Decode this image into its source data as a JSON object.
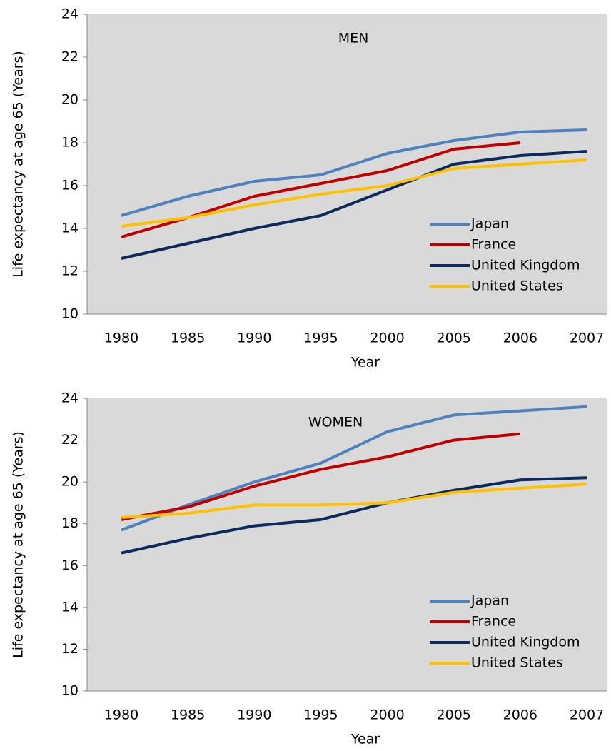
{
  "chart_data": [
    {
      "type": "line",
      "title": "MEN",
      "x_label": "Year",
      "y_label": "Life expectancy at age 65 (Years)",
      "categories": [
        "1980",
        "1985",
        "1990",
        "1995",
        "2000",
        "2005",
        "2006",
        "2007"
      ],
      "series": [
        {
          "name": "Japan",
          "color": "#4f81bd",
          "values": [
            14.6,
            15.5,
            16.2,
            16.5,
            17.5,
            18.1,
            18.5,
            18.6
          ]
        },
        {
          "name": "France",
          "color": "#c00000",
          "values": [
            13.6,
            14.5,
            15.5,
            16.1,
            16.7,
            17.7,
            18.0,
            null
          ]
        },
        {
          "name": "United Kingdom",
          "color": "#0d2a5c",
          "values": [
            12.6,
            13.3,
            14.0,
            14.6,
            15.8,
            17.0,
            17.4,
            17.6
          ]
        },
        {
          "name": "United States",
          "color": "#ffc000",
          "values": [
            14.1,
            14.5,
            15.1,
            15.6,
            16.0,
            16.8,
            17.0,
            17.2
          ]
        }
      ],
      "ylim": [
        10,
        24
      ],
      "yticks": [
        10,
        12,
        14,
        16,
        18,
        20,
        22,
        24
      ],
      "grid": false,
      "legend": "lower right"
    },
    {
      "type": "line",
      "title": "WOMEN",
      "x_label": "Year",
      "y_label": "Life expectancy at age 65 (Years)",
      "categories": [
        "1980",
        "1985",
        "1990",
        "1995",
        "2000",
        "2005",
        "2006",
        "2007"
      ],
      "series": [
        {
          "name": "Japan",
          "color": "#4f81bd",
          "values": [
            17.7,
            18.9,
            20.0,
            20.9,
            22.4,
            23.2,
            23.4,
            23.6
          ]
        },
        {
          "name": "France",
          "color": "#c00000",
          "values": [
            18.2,
            18.8,
            19.8,
            20.6,
            21.2,
            22.0,
            22.3,
            null
          ]
        },
        {
          "name": "United Kingdom",
          "color": "#0d2a5c",
          "values": [
            16.6,
            17.3,
            17.9,
            18.2,
            19.0,
            19.6,
            20.1,
            20.2
          ]
        },
        {
          "name": "United States",
          "color": "#ffc000",
          "values": [
            18.3,
            18.5,
            18.9,
            18.9,
            19.0,
            19.5,
            19.7,
            19.9
          ]
        }
      ],
      "ylim": [
        10,
        24
      ],
      "yticks": [
        10,
        12,
        14,
        16,
        18,
        20,
        22,
        24
      ],
      "grid": false,
      "legend": "lower right"
    }
  ]
}
